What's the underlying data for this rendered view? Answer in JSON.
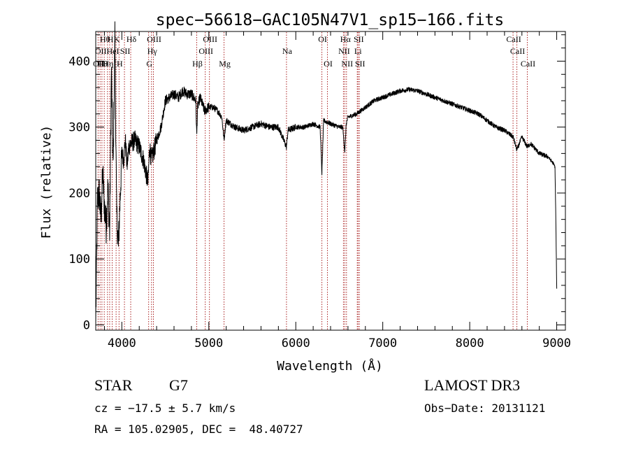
{
  "chart_data": {
    "type": "line",
    "title": "spec−56618−GAC105N47V1_sp15−166.fits",
    "xlabel": "Wavelength (Å)",
    "ylabel": "Flux (relative)",
    "xlim": [
      3700,
      9100
    ],
    "ylim": [
      -8,
      445
    ],
    "xticks": [
      4000,
      5000,
      6000,
      7000,
      8000,
      9000
    ],
    "xtick_labels": [
      "4000",
      "5000",
      "6000",
      "7000",
      "8000",
      "9000"
    ],
    "yticks": [
      0,
      100,
      200,
      300,
      400
    ],
    "ytick_labels": [
      "0",
      "100",
      "200",
      "300",
      "400"
    ],
    "series": [
      {
        "name": "Flux",
        "x": [
          3700,
          3720,
          3740,
          3760,
          3780,
          3800,
          3820,
          3840,
          3860,
          3880,
          3900,
          3920,
          3940,
          3960,
          3980,
          4000,
          4020,
          4040,
          4060,
          4080,
          4100,
          4150,
          4200,
          4250,
          4300,
          4320,
          4340,
          4360,
          4400,
          4450,
          4500,
          4550,
          4600,
          4650,
          4700,
          4750,
          4800,
          4850,
          4861,
          4870,
          4900,
          4950,
          5000,
          5050,
          5100,
          5150,
          5175,
          5190,
          5200,
          5250,
          5300,
          5400,
          5500,
          5600,
          5700,
          5800,
          5893,
          5910,
          6000,
          6100,
          6200,
          6280,
          6300,
          6320,
          6400,
          6500,
          6540,
          6563,
          6580,
          6600,
          6700,
          6800,
          6900,
          7000,
          7100,
          7200,
          7300,
          7400,
          7500,
          7600,
          7700,
          7800,
          7900,
          8000,
          8100,
          8200,
          8300,
          8400,
          8500,
          8542,
          8600,
          8662,
          8700,
          8800,
          8900,
          8960,
          8980,
          8990,
          9000
        ],
        "values": [
          0,
          190,
          200,
          160,
          230,
          180,
          150,
          210,
          140,
          390,
          230,
          440,
          170,
          120,
          190,
          260,
          250,
          280,
          240,
          270,
          275,
          280,
          270,
          250,
          215,
          270,
          250,
          260,
          280,
          300,
          340,
          345,
          350,
          345,
          355,
          350,
          350,
          340,
          285,
          330,
          345,
          325,
          330,
          330,
          325,
          315,
          280,
          300,
          310,
          305,
          300,
          295,
          300,
          305,
          300,
          300,
          270,
          295,
          300,
          300,
          305,
          300,
          230,
          310,
          305,
          300,
          300,
          262,
          305,
          315,
          320,
          330,
          340,
          345,
          350,
          355,
          357,
          355,
          350,
          345,
          340,
          335,
          330,
          325,
          320,
          310,
          300,
          295,
          285,
          265,
          285,
          270,
          275,
          260,
          255,
          245,
          240,
          160,
          55
        ]
      }
    ],
    "lines": [
      {
        "wavelength": 3727,
        "row": 2,
        "label": "OII"
      },
      {
        "wavelength": 3750,
        "row": 1,
        "label": "OII"
      },
      {
        "wavelength": 3771,
        "row": 2,
        "label": "Hθ"
      },
      {
        "wavelength": 3798,
        "row": 0,
        "label": "Hθ"
      },
      {
        "wavelength": 3835,
        "row": 2,
        "label": "Hη"
      },
      {
        "wavelength": 3860,
        "row": 0,
        "label": "H"
      },
      {
        "wavelength": 3889,
        "row": 1,
        "label": "HeI"
      },
      {
        "wavelength": 3934,
        "row": 0,
        "label": "K"
      },
      {
        "wavelength": 3968,
        "row": 2,
        "label": "H"
      },
      {
        "wavelength": 4030,
        "row": 1,
        "label": "SII"
      },
      {
        "wavelength": 4102,
        "row": 0,
        "label": "Hδ"
      },
      {
        "wavelength": 4308,
        "row": 2,
        "label": "G"
      },
      {
        "wavelength": 4341,
        "row": 1,
        "label": "Hγ"
      },
      {
        "wavelength": 4363,
        "row": 0,
        "label": "OIII"
      },
      {
        "wavelength": 4861,
        "row": 2,
        "label": "Hβ"
      },
      {
        "wavelength": 4959,
        "row": 1,
        "label": "OIII"
      },
      {
        "wavelength": 5007,
        "row": 0,
        "label": "OIII"
      },
      {
        "wavelength": 5175,
        "row": 2,
        "label": "Mg"
      },
      {
        "wavelength": 5893,
        "row": 1,
        "label": "Na"
      },
      {
        "wavelength": 6300,
        "row": 0,
        "label": "OI"
      },
      {
        "wavelength": 6364,
        "row": 2,
        "label": "OI"
      },
      {
        "wavelength": 6548,
        "row": 1,
        "label": "NII"
      },
      {
        "wavelength": 6563,
        "row": 0,
        "label": "Hα"
      },
      {
        "wavelength": 6583,
        "row": 2,
        "label": "NII"
      },
      {
        "wavelength": 6707,
        "row": 1,
        "label": "Li"
      },
      {
        "wavelength": 6716,
        "row": 0,
        "label": "SII"
      },
      {
        "wavelength": 6731,
        "row": 2,
        "label": "SII"
      },
      {
        "wavelength": 8498,
        "row": 0,
        "label": "CaII"
      },
      {
        "wavelength": 8542,
        "row": 1,
        "label": "CaII"
      },
      {
        "wavelength": 8662,
        "row": 2,
        "label": "CaII"
      }
    ]
  },
  "info": {
    "class": "STAR",
    "subclass": "G7",
    "cz": "cz = −17.5 ± 5.7 km/s",
    "radec": "RA = 105.02905, DEC =  48.40727",
    "survey": "LAMOST DR3",
    "obsdate": "Obs−Date: 20131121"
  },
  "colors": {
    "spectrum": "#000000",
    "line_marker": "#aa2222",
    "axis": "#000000"
  }
}
